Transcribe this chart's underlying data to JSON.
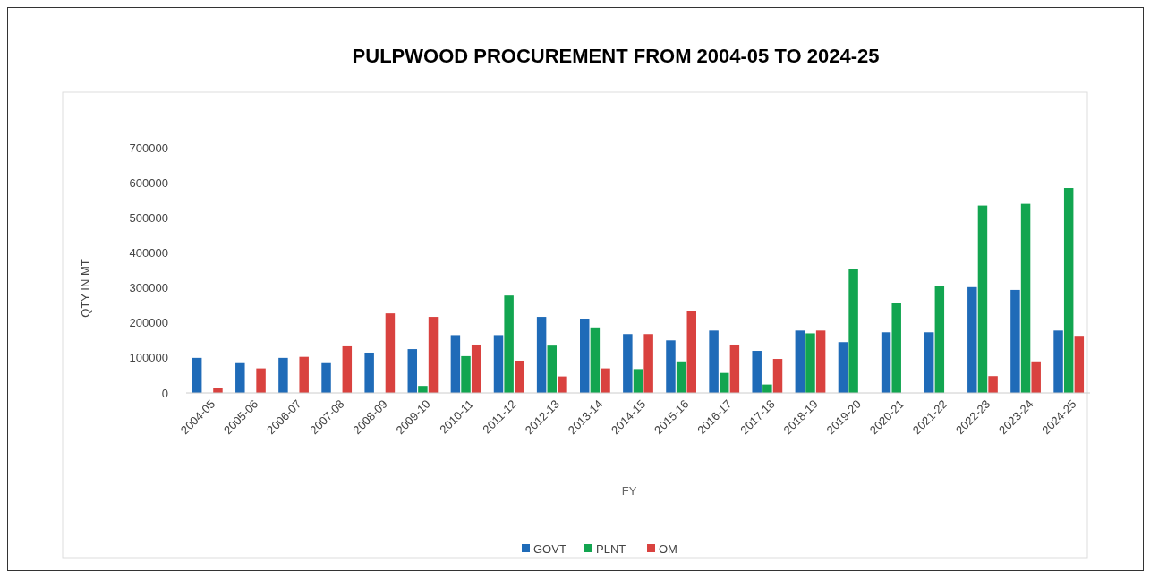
{
  "chart_data": {
    "type": "bar",
    "title": "PULPWOOD PROCUREMENT FROM 2004-05 TO 2024-25",
    "xlabel": "FY",
    "ylabel": "QTY IN MT",
    "categories": [
      "2004-05",
      "2005-06",
      "2006-07",
      "2007-08",
      "2008-09",
      "2009-10",
      "2010-11",
      "2011-12",
      "2012-13",
      "2013-14",
      "2014-15",
      "2015-16",
      "2016-17",
      "2017-18",
      "2018-19",
      "2019-20",
      "2020-21",
      "2021-22",
      "2022-23",
      "2023-24",
      "2024-25"
    ],
    "series": [
      {
        "name": "GOVT",
        "color": "#1f6bb8",
        "values": [
          100000,
          85000,
          100000,
          85000,
          115000,
          125000,
          165000,
          165000,
          217000,
          212000,
          168000,
          150000,
          178000,
          120000,
          178000,
          145000,
          173000,
          173000,
          302000,
          294000,
          178000
        ]
      },
      {
        "name": "PLNT",
        "color": "#12a550",
        "values": [
          null,
          null,
          null,
          null,
          null,
          20000,
          105000,
          278000,
          135000,
          187000,
          68000,
          90000,
          57000,
          24000,
          170000,
          355000,
          258000,
          305000,
          535000,
          540000,
          585000
        ]
      },
      {
        "name": "OM",
        "color": "#d9423f",
        "values": [
          15000,
          70000,
          103000,
          133000,
          227000,
          217000,
          138000,
          92000,
          47000,
          70000,
          168000,
          235000,
          138000,
          97000,
          178000,
          null,
          null,
          null,
          48000,
          90000,
          163000
        ]
      }
    ],
    "ylim": [
      0,
      700000
    ],
    "yticks": [
      0,
      100000,
      200000,
      300000,
      400000,
      500000,
      600000,
      700000
    ],
    "legend": "bottom"
  }
}
